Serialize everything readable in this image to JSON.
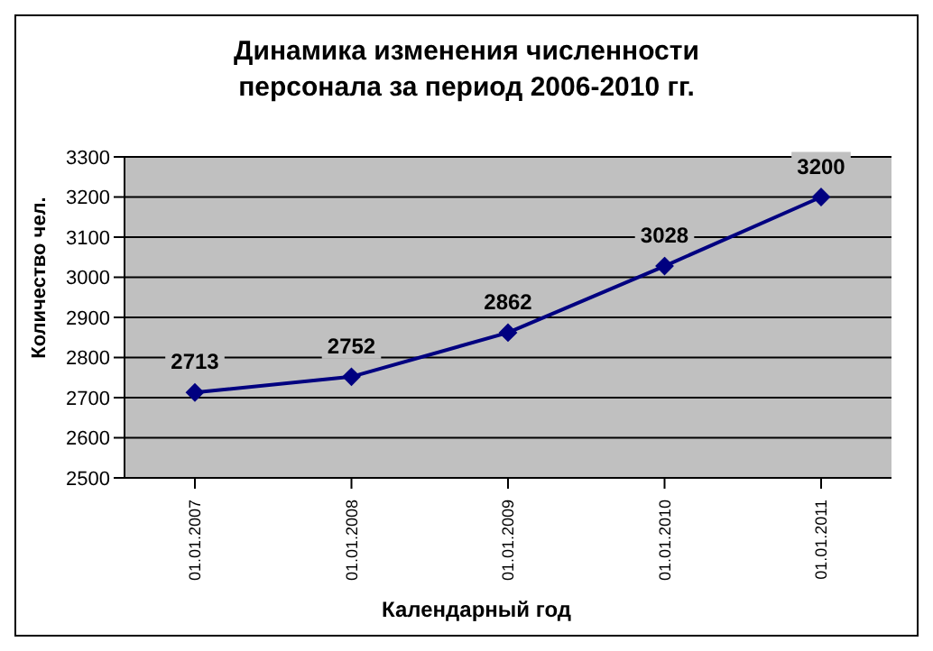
{
  "chart_data": {
    "type": "line",
    "title": "Динамика изменения численности\nперсонала за период 2006-2010 гг.",
    "xlabel": "Календарный год",
    "ylabel": "Количество чел.",
    "categories": [
      "01.01.2007",
      "01.01.2008",
      "01.01.2009",
      "01.01.2010",
      "01.01.2011"
    ],
    "series": [
      {
        "color": "#000080",
        "values": [
          2713,
          2752,
          2862,
          3028,
          3200
        ]
      }
    ],
    "ylim": [
      2500,
      3300
    ],
    "yticks": [
      2500,
      2600,
      2700,
      2800,
      2900,
      3000,
      3100,
      3200,
      3300
    ],
    "grid": "y",
    "marker": "diamond",
    "line_style": "solid",
    "data_labels": true
  }
}
